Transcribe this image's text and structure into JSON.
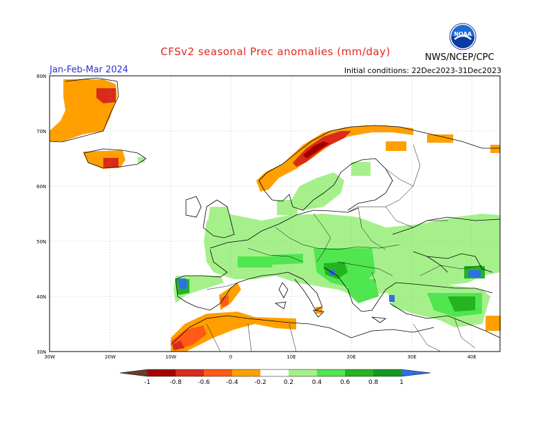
{
  "title": "CFSv2 seasonal Prec anomalies (mm/day)",
  "period": "Jan-Feb-Mar 2024",
  "initial_conditions": "Initial conditions: 22Dec2023-31Dec2023",
  "organization": "NWS/NCEP/CPC",
  "logo_text": "NOAA",
  "logo_icon": "noaa-logo-icon",
  "lat_labels": [
    "80N",
    "70N",
    "60N",
    "50N",
    "40N",
    "30N"
  ],
  "lon_labels": [
    "30W",
    "20W",
    "10W",
    "0",
    "10E",
    "20E",
    "30E",
    "40E"
  ],
  "colorbar": {
    "labels": [
      "-1",
      "-0.8",
      "-0.6",
      "-0.4",
      "-0.2",
      "0.2",
      "0.4",
      "0.6",
      "0.8",
      "1"
    ],
    "colors": [
      "#6b3a2a",
      "#a50000",
      "#d92b1a",
      "#ff5a16",
      "#ffa000",
      "#ffffff",
      "#a6f08c",
      "#50e650",
      "#23b420",
      "#0f9b1e",
      "#2e6fe6"
    ]
  },
  "colors": {
    "dry_strong": "#d92b1a",
    "dry": "#ffa000",
    "wet": "#a6f08c",
    "wet_mid": "#50e650",
    "wet_strong": "#23b420",
    "very_wet": "#2e6fe6"
  }
}
